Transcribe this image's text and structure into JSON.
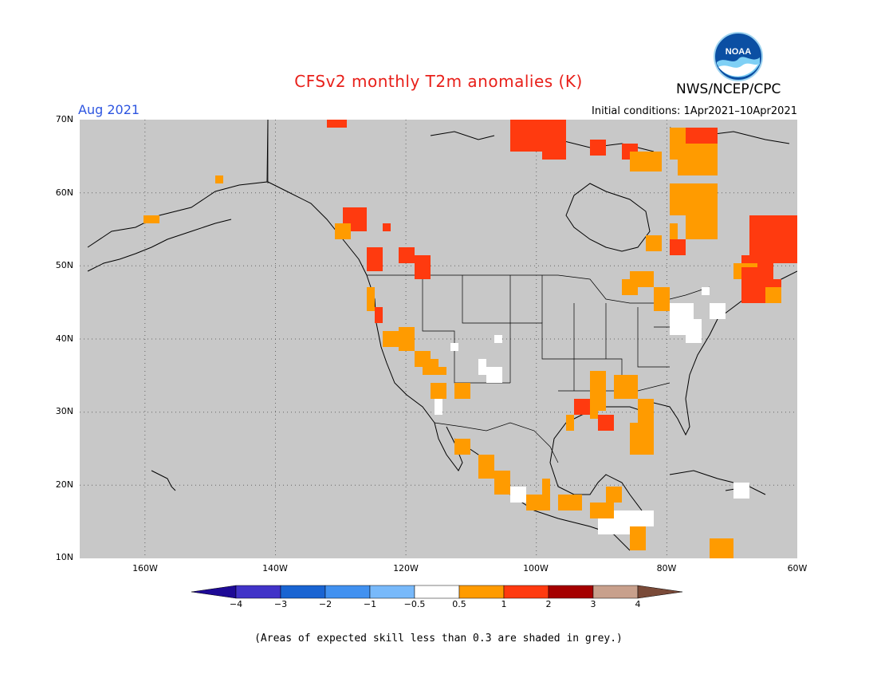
{
  "header": {
    "title": "CFSv2 monthly T2m anomalies (K)",
    "org": "NWS/NCEP/CPC",
    "logo_text": "NOAA",
    "month": "Aug 2021",
    "initial_conditions": "Initial conditions: 1Apr2021–10Apr2021"
  },
  "map": {
    "lon_range": [
      -170,
      -60
    ],
    "lat_range": [
      10,
      70
    ],
    "lat_labels": [
      "70N",
      "60N",
      "50N",
      "40N",
      "30N",
      "20N",
      "10N"
    ],
    "lon_labels": [
      "160W",
      "140W",
      "120W",
      "100W",
      "80W",
      "60W"
    ],
    "background_color": "#c8c8c8",
    "grid": "dotted"
  },
  "legend": {
    "bins": [
      {
        "label": "−4",
        "color": "#1e0a96"
      },
      {
        "label": "−3",
        "color": "#4133c8"
      },
      {
        "label": "−2",
        "color": "#1964d2"
      },
      {
        "label": "−1",
        "color": "#4191f0"
      },
      {
        "label": "−0.5",
        "color": "#78b9fa"
      },
      {
        "label": "0.5",
        "color": "#ffffff"
      },
      {
        "label": "1",
        "color": "#ff9b00"
      },
      {
        "label": "2",
        "color": "#ff3a0f"
      },
      {
        "label": "3",
        "color": "#a50000"
      },
      {
        "label": "4",
        "color": "#c8a08c"
      },
      {
        "label": "",
        "color": "#7a4a38"
      }
    ],
    "colors": {
      "white": "#ffffff",
      "orange": "#ff9b00",
      "red": "#ff3a0f"
    }
  },
  "footnote": "(Areas of expected skill less than 0.3 are shaded in grey.)"
}
